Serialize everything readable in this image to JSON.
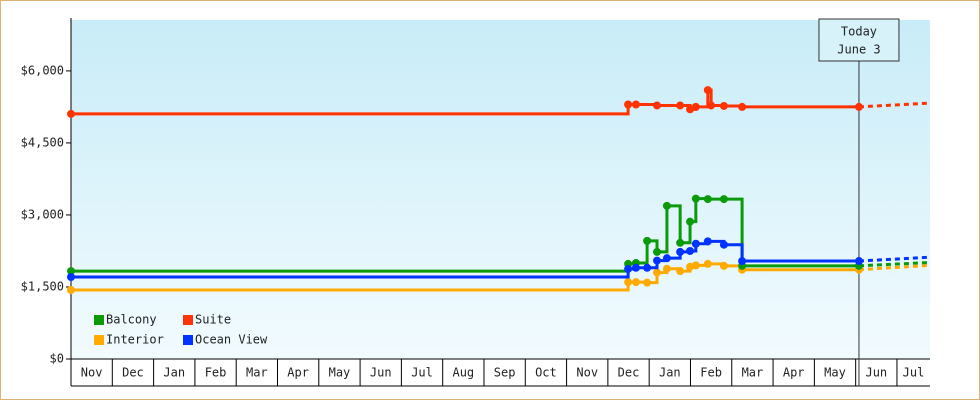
{
  "chart_data": {
    "type": "line",
    "step": true,
    "categories": [
      "Nov",
      "Dec",
      "Jan",
      "Feb",
      "Mar",
      "Apr",
      "May",
      "Jun",
      "Jul",
      "Aug",
      "Sep",
      "Oct",
      "Nov",
      "Dec",
      "Jan",
      "Feb",
      "Mar",
      "Apr",
      "May",
      "Jun",
      "Jul"
    ],
    "xlim": [
      0,
      20.8
    ],
    "ylim": [
      0,
      7060
    ],
    "yticks": [
      {
        "value": 0,
        "label": "$0"
      },
      {
        "value": 1500,
        "label": "$1,500"
      },
      {
        "value": 3000,
        "label": "$3,000"
      },
      {
        "value": 4500,
        "label": "$4,500"
      },
      {
        "value": 6000,
        "label": "$6,000"
      }
    ],
    "today": {
      "label": "Today",
      "date": "June 3",
      "x": 19.08
    },
    "projection_x": [
      19.08,
      20.8
    ],
    "series": [
      {
        "name": "Balcony",
        "color": "#0a9a0a",
        "x": [
          0,
          13.49,
          13.68,
          13.95,
          14.19,
          14.43,
          14.75,
          14.99,
          15.13,
          15.42,
          15.81,
          16.25,
          19.08
        ],
        "values": [
          1830,
          1980,
          2000,
          2460,
          2230,
          3190,
          2420,
          2860,
          3340,
          3330,
          3330,
          1940,
          1940
        ],
        "projection": [
          1940,
          2010
        ]
      },
      {
        "name": "Suite",
        "color": "#ff3300",
        "x": [
          0,
          13.49,
          13.68,
          14.19,
          14.75,
          14.99,
          15.13,
          15.42,
          15.5,
          15.81,
          16.25,
          19.08
        ],
        "values": [
          5104,
          5300,
          5300,
          5280,
          5280,
          5200,
          5250,
          5600,
          5280,
          5270,
          5250,
          5250
        ],
        "projection": [
          5250,
          5330
        ]
      },
      {
        "name": "Interior",
        "color": "#ffaa00",
        "x": [
          0,
          13.49,
          13.68,
          13.95,
          14.19,
          14.43,
          14.75,
          14.99,
          15.13,
          15.42,
          15.81,
          16.25,
          19.08
        ],
        "values": [
          1437,
          1600,
          1600,
          1590,
          1800,
          1880,
          1830,
          1920,
          1950,
          1980,
          1940,
          1860,
          1860
        ],
        "projection": [
          1860,
          1950
        ]
      },
      {
        "name": "Ocean View",
        "color": "#0033ff",
        "x": [
          0,
          13.49,
          13.68,
          13.95,
          14.19,
          14.43,
          14.75,
          14.99,
          15.13,
          15.42,
          15.81,
          16.25,
          19.08
        ],
        "values": [
          1708,
          1875,
          1900,
          1900,
          2050,
          2100,
          2230,
          2250,
          2400,
          2450,
          2380,
          2040,
          2040
        ],
        "projection": [
          2040,
          2120
        ]
      }
    ]
  }
}
